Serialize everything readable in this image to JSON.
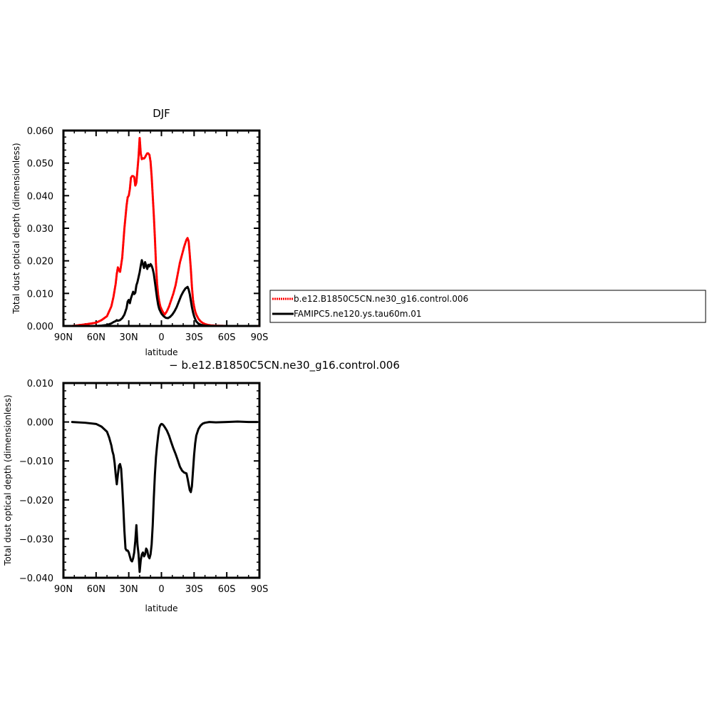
{
  "chart_data": [
    {
      "type": "line",
      "title": "DJF",
      "xlabel": "latitude",
      "ylabel": "Total dust optical depth (dimensionless)",
      "xlim": [
        90,
        -90
      ],
      "ylim": [
        0.0,
        0.06
      ],
      "xticks": [
        90,
        60,
        30,
        0,
        -30,
        -60,
        -90
      ],
      "xtick_labels": [
        "90N",
        "60N",
        "30N",
        "0",
        "30S",
        "60S",
        "90S"
      ],
      "yticks": [
        0.0,
        0.01,
        0.02,
        0.03,
        0.04,
        0.05,
        0.06
      ],
      "ytick_labels": [
        "0.000",
        "0.010",
        "0.020",
        "0.030",
        "0.040",
        "0.050",
        "0.060"
      ],
      "legend": "outside-right",
      "series": [
        {
          "name": "b.e12.B1850C5CN.ne30_g16.control.006",
          "color": "#ff0000",
          "x": [
            82,
            70,
            60,
            55,
            50,
            46,
            44,
            42,
            41,
            40,
            39,
            38,
            36,
            34,
            32,
            31,
            30,
            29,
            28,
            27,
            26,
            25,
            24,
            23,
            22,
            21,
            20,
            19,
            18,
            17,
            16,
            15,
            14,
            13,
            12,
            11,
            10,
            9,
            8,
            7,
            6,
            5,
            4,
            3,
            2,
            1,
            0,
            -1,
            -2,
            -3,
            -5,
            -7,
            -9,
            -11,
            -13,
            -15,
            -17,
            -19,
            -21,
            -23,
            -24,
            -25,
            -26,
            -27,
            -28,
            -29,
            -30,
            -31,
            -32,
            -34,
            -36,
            -38,
            -40,
            -42,
            -45,
            -50,
            -55,
            -60,
            -70,
            -80,
            -88
          ],
          "values": [
            0.0,
            0.0005,
            0.001,
            0.0018,
            0.003,
            0.006,
            0.009,
            0.013,
            0.016,
            0.018,
            0.0172,
            0.0165,
            0.021,
            0.03,
            0.037,
            0.0395,
            0.04,
            0.042,
            0.0455,
            0.046,
            0.046,
            0.0458,
            0.043,
            0.044,
            0.048,
            0.052,
            0.0578,
            0.053,
            0.0512,
            0.0515,
            0.0514,
            0.0518,
            0.0525,
            0.053,
            0.053,
            0.0525,
            0.0505,
            0.046,
            0.04,
            0.034,
            0.027,
            0.019,
            0.013,
            0.0095,
            0.0075,
            0.006,
            0.0052,
            0.0045,
            0.004,
            0.0035,
            0.0045,
            0.006,
            0.008,
            0.01,
            0.0125,
            0.016,
            0.0195,
            0.022,
            0.0245,
            0.0265,
            0.027,
            0.026,
            0.022,
            0.0175,
            0.012,
            0.008,
            0.006,
            0.0045,
            0.0035,
            0.0022,
            0.0014,
            0.0009,
            0.0006,
            0.0004,
            0.0002,
            0.0001,
            5e-05,
            0.0,
            0.0,
            0.0,
            0.0
          ]
        },
        {
          "name": "FAMIPC5.ne120.ys.tau60m.01",
          "color": "#000000",
          "x": [
            82,
            70,
            60,
            55,
            50,
            46,
            44,
            42,
            41,
            40,
            38,
            36,
            34,
            32,
            31,
            30,
            29,
            28,
            27,
            26,
            25,
            24,
            23,
            22,
            21,
            20,
            19,
            18,
            17,
            16,
            15,
            14,
            13,
            12,
            11,
            10,
            9,
            8,
            7,
            6,
            5,
            4,
            3,
            2,
            1,
            0,
            -2,
            -4,
            -6,
            -8,
            -10,
            -12,
            -14,
            -16,
            -18,
            -20,
            -22,
            -24,
            -25,
            -26,
            -27,
            -28,
            -29,
            -30,
            -31,
            -32,
            -34,
            -36,
            -38,
            -40,
            -45,
            -50,
            -60,
            -70,
            -80,
            -88
          ],
          "values": [
            0.0,
            0.0,
            0.0,
            0.0001,
            0.0003,
            0.0008,
            0.0012,
            0.0015,
            0.0018,
            0.0016,
            0.0018,
            0.0024,
            0.0035,
            0.0055,
            0.0075,
            0.008,
            0.007,
            0.0085,
            0.0095,
            0.0105,
            0.0098,
            0.0102,
            0.0125,
            0.0135,
            0.015,
            0.0165,
            0.0185,
            0.0202,
            0.019,
            0.0178,
            0.0196,
            0.0185,
            0.0175,
            0.0188,
            0.0183,
            0.019,
            0.0185,
            0.0175,
            0.016,
            0.0135,
            0.011,
            0.0085,
            0.0065,
            0.0052,
            0.0045,
            0.0038,
            0.003,
            0.0025,
            0.0024,
            0.0028,
            0.0035,
            0.0045,
            0.0058,
            0.0075,
            0.0092,
            0.0105,
            0.0115,
            0.012,
            0.0112,
            0.0098,
            0.0078,
            0.0058,
            0.0042,
            0.003,
            0.0021,
            0.0014,
            0.0007,
            0.0004,
            0.0002,
            0.0001,
            0.0,
            0.0,
            0.0,
            0.0,
            0.0,
            0.0
          ]
        }
      ]
    },
    {
      "type": "line",
      "title": "− b.e12.B1850C5CN.ne30_g16.control.006",
      "xlabel": "latitude",
      "ylabel": "Total dust optical depth (dimensionless)",
      "xlim": [
        90,
        -90
      ],
      "ylim": [
        -0.04,
        0.01
      ],
      "xticks": [
        90,
        60,
        30,
        0,
        -30,
        -60,
        -90
      ],
      "xtick_labels": [
        "90N",
        "60N",
        "30N",
        "0",
        "30S",
        "60S",
        "90S"
      ],
      "yticks": [
        -0.04,
        -0.03,
        -0.02,
        -0.01,
        0.0,
        0.01
      ],
      "ytick_labels": [
        "−0.040",
        "−0.030",
        "−0.020",
        "−0.010",
        "0.000",
        "0.010"
      ],
      "series": [
        {
          "color": "#000000",
          "x": [
            82,
            70,
            60,
            55,
            50,
            48,
            46,
            45,
            44,
            43,
            42,
            41,
            40,
            39,
            38,
            37,
            36,
            35,
            34,
            33,
            32,
            31,
            30,
            29,
            28,
            27,
            26,
            25,
            24,
            23,
            22,
            21,
            20,
            19,
            18,
            17,
            16,
            15,
            14,
            13,
            12,
            11,
            10,
            9,
            8,
            7,
            6,
            5,
            4,
            3,
            2,
            1,
            0,
            -1,
            -2,
            -3,
            -5,
            -7,
            -9,
            -11,
            -13,
            -15,
            -17,
            -19,
            -21,
            -23,
            -24,
            -25,
            -26,
            -27,
            -28,
            -29,
            -30,
            -31,
            -32,
            -34,
            -36,
            -38,
            -40,
            -44,
            -50,
            -60,
            -70,
            -80,
            -88
          ],
          "values": [
            0.0,
            -0.0002,
            -0.0005,
            -0.0012,
            -0.0025,
            -0.004,
            -0.006,
            -0.0075,
            -0.0085,
            -0.0105,
            -0.0135,
            -0.016,
            -0.0135,
            -0.0112,
            -0.0108,
            -0.012,
            -0.0165,
            -0.022,
            -0.028,
            -0.0325,
            -0.033,
            -0.033,
            -0.0335,
            -0.0345,
            -0.0355,
            -0.0358,
            -0.035,
            -0.0335,
            -0.0305,
            -0.0265,
            -0.0315,
            -0.034,
            -0.0385,
            -0.0355,
            -0.034,
            -0.0335,
            -0.0345,
            -0.034,
            -0.0325,
            -0.033,
            -0.0345,
            -0.035,
            -0.034,
            -0.0315,
            -0.0265,
            -0.0195,
            -0.0135,
            -0.009,
            -0.006,
            -0.0035,
            -0.0015,
            -0.0008,
            -0.0005,
            -0.0006,
            -0.0009,
            -0.0013,
            -0.0022,
            -0.0035,
            -0.0052,
            -0.0068,
            -0.0082,
            -0.0098,
            -0.0115,
            -0.0125,
            -0.013,
            -0.0132,
            -0.0145,
            -0.016,
            -0.0175,
            -0.018,
            -0.0165,
            -0.0125,
            -0.0085,
            -0.0055,
            -0.0035,
            -0.0018,
            -0.0009,
            -0.0004,
            -0.0002,
            0.0,
            -0.0001,
            0.0,
            0.0001,
            0.0,
            0.0
          ]
        }
      ]
    }
  ]
}
